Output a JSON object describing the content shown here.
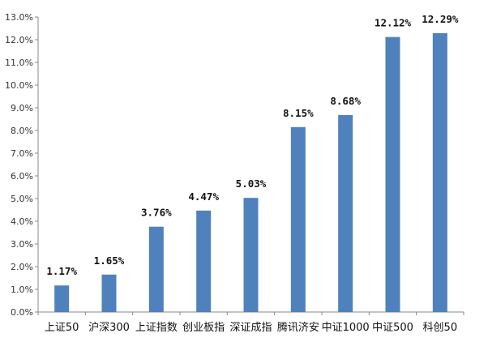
{
  "chart_data": {
    "type": "bar",
    "title": "",
    "xlabel": "",
    "ylabel": "",
    "categories": [
      "上证50",
      "沪深300",
      "上证指数",
      "创业板指",
      "深证成指",
      "腾讯济安",
      "中证1000",
      "中证500",
      "科创50"
    ],
    "values": [
      1.17,
      1.65,
      3.76,
      4.47,
      5.03,
      8.15,
      8.68,
      12.12,
      12.29
    ],
    "data_labels": [
      "1.17%",
      "1.65%",
      "3.76%",
      "4.47%",
      "5.03%",
      "8.15%",
      "8.68%",
      "12.12%",
      "12.29%"
    ],
    "ylim": [
      0,
      13
    ],
    "y_ticks": [
      0,
      1,
      2,
      3,
      4,
      5,
      6,
      7,
      8,
      9,
      10,
      11,
      12,
      13
    ],
    "y_tick_labels": [
      "0.0%",
      "1.0%",
      "2.0%",
      "3.0%",
      "4.0%",
      "5.0%",
      "6.0%",
      "7.0%",
      "8.0%",
      "9.0%",
      "10.0%",
      "11.0%",
      "12.0%",
      "13.0%"
    ],
    "grid": false,
    "legend": "none",
    "colors": {
      "bar": "#4f81bd",
      "axis": "#888888"
    }
  }
}
